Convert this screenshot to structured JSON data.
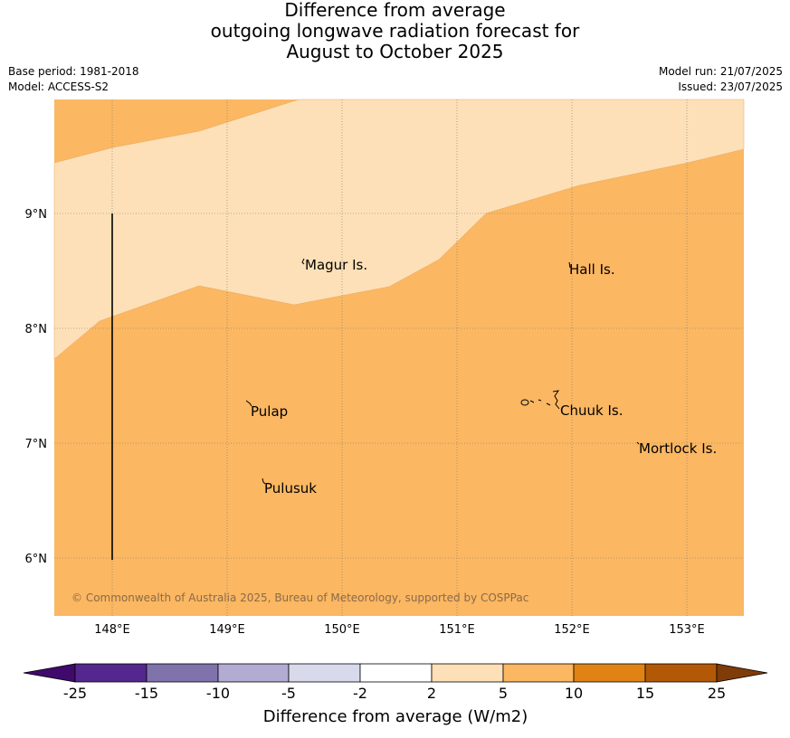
{
  "header": {
    "title_line1": "Difference from average",
    "title_line2": "outgoing longwave radiation forecast for",
    "title_line3": "August to October 2025",
    "base_period": "Base period: 1981-2018",
    "model": "Model: ACCESS-S2",
    "model_run": "Model run: 21/07/2025",
    "issued": "Issued: 23/07/2025"
  },
  "map": {
    "lat_labels": [
      "9°N",
      "8°N",
      "7°N",
      "6°N"
    ],
    "lon_labels": [
      "148°E",
      "149°E",
      "150°E",
      "151°E",
      "152°E",
      "153°E"
    ],
    "places": [
      "Magur Is.",
      "Hall Is.",
      "Pulap",
      "Chuuk Is.",
      "Mortlock Is.",
      "Pulusuk"
    ],
    "copyright": "© Commonwealth of Australia 2025, Bureau of Meteorology, supported by COSPPac",
    "fill_colors": {
      "2_to_5": "#fde0b7",
      "5_to_10": "#fbb762"
    }
  },
  "colorbar": {
    "label": "Difference from average (W/m2)",
    "ticks": [
      "-25",
      "-15",
      "-10",
      "-5",
      "-2",
      "2",
      "5",
      "10",
      "15",
      "25"
    ],
    "colors": [
      "#3f0a6c",
      "#54278f",
      "#8073ac",
      "#b2abd2",
      "#d8daeb",
      "#ffffff",
      "#fde0b7",
      "#fbb762",
      "#e08214",
      "#b35806",
      "#7f3b08"
    ]
  }
}
